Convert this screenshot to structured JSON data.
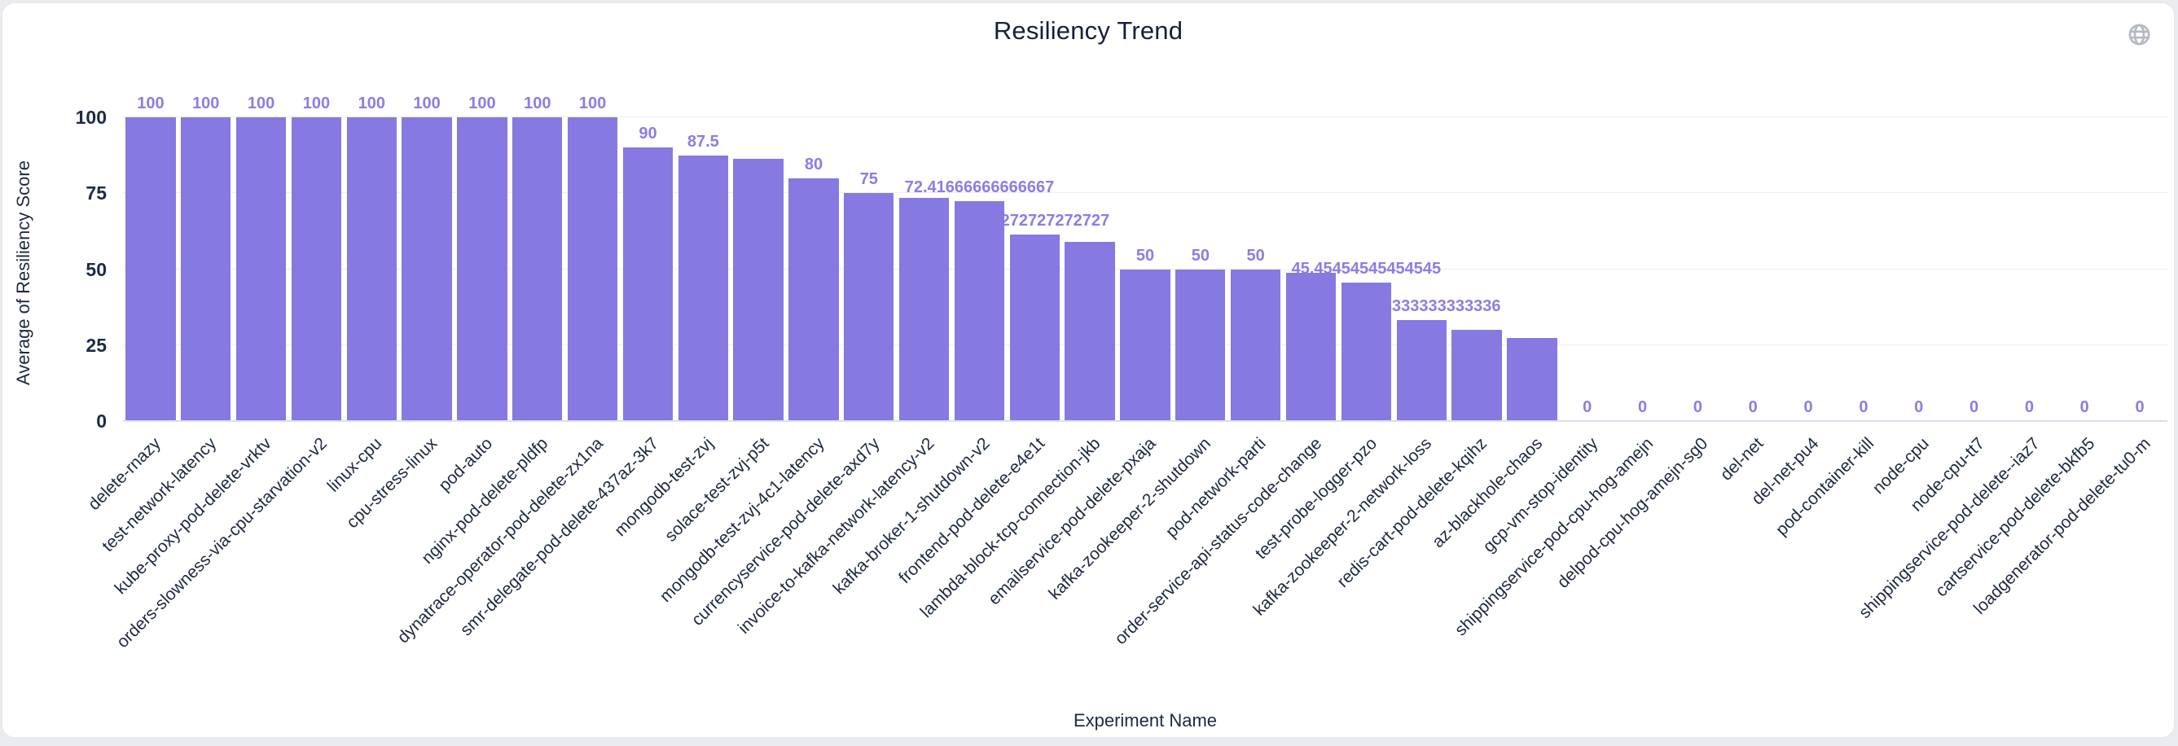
{
  "page": {
    "background": "#e9ebef",
    "card_background": "#ffffff",
    "accent": "#8679e2"
  },
  "header": {
    "title": "Resiliency Trend"
  },
  "chart_data": {
    "type": "bar",
    "title": "Resiliency Trend",
    "xlabel": "Experiment Name",
    "ylabel": "Average of Resiliency Score",
    "ylim": [
      0,
      100
    ],
    "yticks": [
      0,
      25,
      50,
      75,
      100
    ],
    "grid": true,
    "legend": "none",
    "bar_color": "#8679e2",
    "value_label_color": "#8b7de6",
    "categories": [
      "delete-rnazy",
      "test-network-latency",
      "kube-proxy-pod-delete-vrktv",
      "orders-slowness-via-cpu-starvation-v2",
      "linux-cpu",
      "cpu-stress-linux",
      "pod-auto",
      "nginx-pod-delete-pldfp",
      "dynatrace-operator-pod-delete-zx1na",
      "smr-delegate-pod-delete-437az-3k7",
      "mongodb-test-zvj",
      "solace-test-zvj-p5t",
      "mongodb-test-zvj-4c1-latency",
      "currencyservice-pod-delete-axd7y",
      "invoice-to-kafka-network-latency-v2",
      "kafka-broker-1-shutdown-v2",
      "frontend-pod-delete-e4e1t",
      "lambda-block-tcp-connection-jkb",
      "emailservice-pod-delete-pxaja",
      "kafka-zookeeper-2-shutdown",
      "pod-network-parti",
      "order-service-api-status-code-change",
      "test-probe-logger-pzo",
      "kafka-zookeeper-2-network-loss",
      "redis-cart-pod-delete-kqihz",
      "az-blackhole-chaos",
      "gcp-vm-stop-identity",
      "shippingservice-pod-cpu-hog-amejn",
      "delpod-cpu-hog-amejn-sg0",
      "del-net",
      "del-net-pu4",
      "pod-container-kill",
      "node-cpu",
      "node-cpu-tt7",
      "shippingservice-pod-delete--iaz7",
      "cartservice-pod-delete-bkfb5",
      "loadgenerator-pod-delete-tu0-m"
    ],
    "values": [
      100,
      100,
      100,
      100,
      100,
      100,
      100,
      100,
      100,
      90,
      87.5,
      86.3,
      80,
      75,
      73.4,
      72.41666666666667,
      61.27272727272727,
      58.9,
      50,
      50,
      50,
      48.8,
      45.45454545454545,
      33.333333333333336,
      30,
      27.3,
      0,
      0,
      0,
      0,
      0,
      0,
      0,
      0,
      0,
      0,
      0
    ],
    "value_labels": [
      "100",
      "100",
      "100",
      "100",
      "100",
      "100",
      "100",
      "100",
      "100",
      "90",
      "87.5",
      null,
      "80",
      "75",
      null,
      "72.41666666666667",
      "61.27272727272727",
      null,
      "50",
      "50",
      "50",
      null,
      "45.45454545454545",
      "33.333333333333336",
      null,
      null,
      "0",
      "0",
      "0",
      "0",
      "0",
      "0",
      "0",
      "0",
      "0",
      "0",
      "0"
    ]
  }
}
